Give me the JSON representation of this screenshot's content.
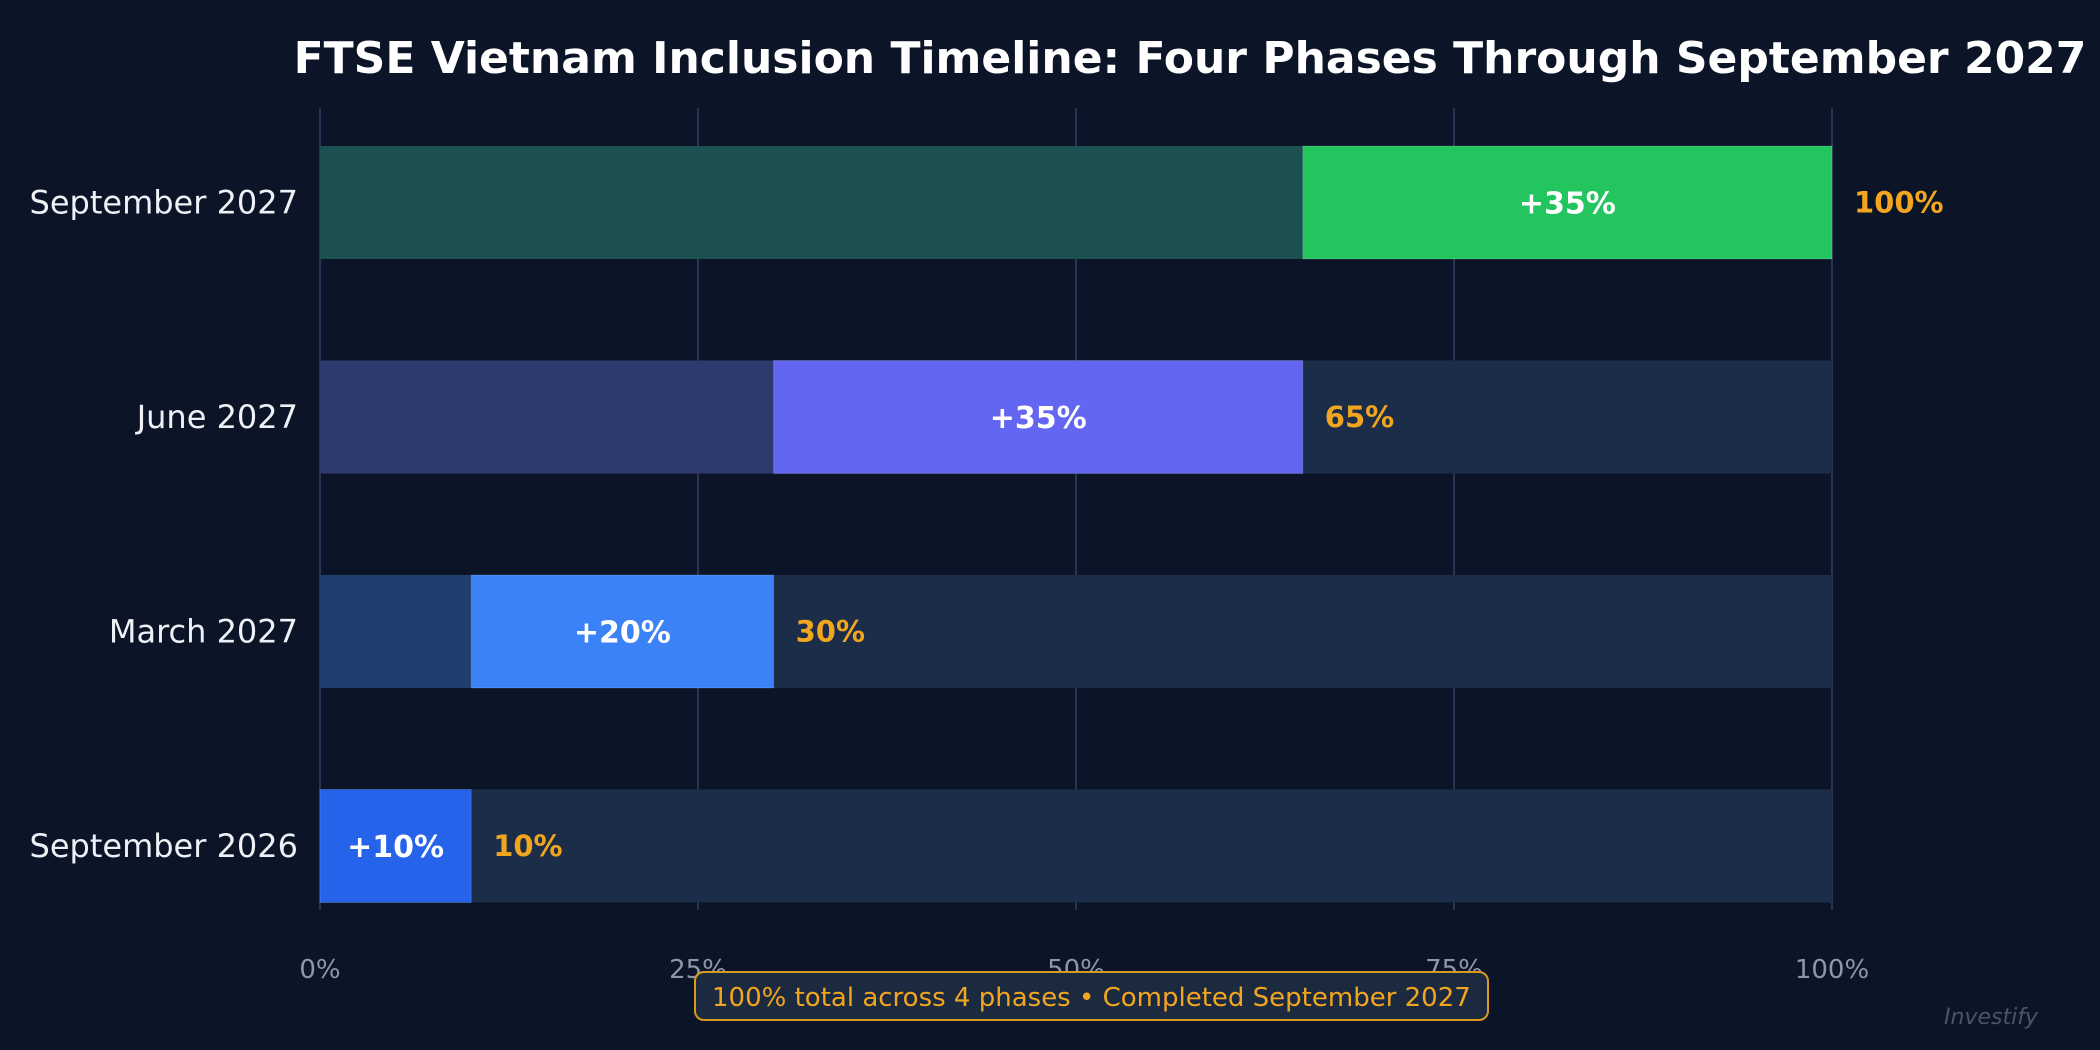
{
  "chart_data": {
    "type": "bar",
    "orientation": "horizontal",
    "stacked": true,
    "title": "FTSE Vietnam Inclusion Timeline: Four Phases Through September 2027",
    "categories": [
      "September 2027",
      "June 2027",
      "March 2027",
      "September 2026"
    ],
    "series": [
      {
        "role": "prior",
        "values": [
          65,
          30,
          10,
          0
        ]
      },
      {
        "role": "increment",
        "values": [
          35,
          35,
          20,
          10
        ]
      }
    ],
    "increment_labels": [
      "+35%",
      "+35%",
      "+20%",
      "+10%"
    ],
    "cumulative_labels": [
      "100%",
      "65%",
      "30%",
      "10%"
    ],
    "xlim": [
      0,
      100
    ],
    "x_ticks": [
      0,
      25,
      50,
      75,
      100
    ],
    "x_tick_labels": [
      "0%",
      "25%",
      "50%",
      "75%",
      "100%"
    ],
    "grid": "vertical",
    "colors": {
      "increment": [
        "#22c55e",
        "#6366f1",
        "#3b82f6",
        "#2563eb"
      ],
      "prior": [
        "#1d5050",
        "#2e3a6e",
        "#1f3f6e",
        "#1f3f6e"
      ],
      "track": "#1b2d48",
      "cumulative_text": "#f2a51f",
      "background": "#0b1527"
    }
  },
  "annotation": "100% total across 4 phases  •  Completed September 2027",
  "watermark": "Investify"
}
